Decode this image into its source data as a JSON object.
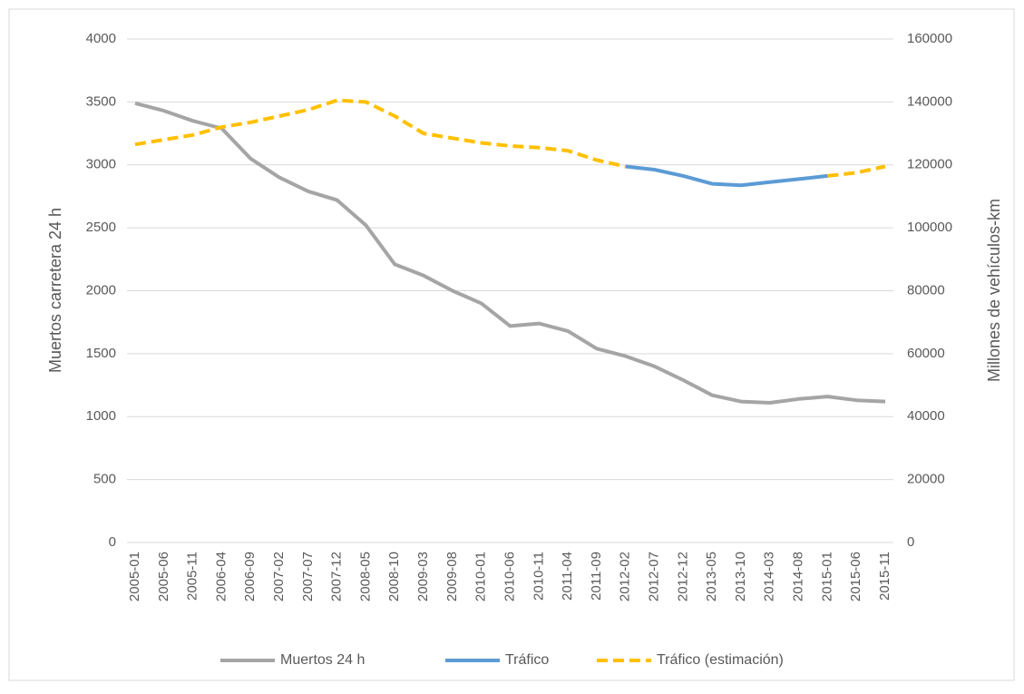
{
  "chart_data": {
    "type": "line",
    "y_label": "Muertos carretera 24 h",
    "y2_label": "Millones de vehículos-km",
    "categories": [
      "2005-01",
      "2005-06",
      "2005-11",
      "2006-04",
      "2006-09",
      "2007-02",
      "2007-07",
      "2007-12",
      "2008-05",
      "2008-10",
      "2009-03",
      "2009-08",
      "2010-01",
      "2010-06",
      "2010-11",
      "2011-04",
      "2011-09",
      "2012-02",
      "2012-07",
      "2012-12",
      "2013-05",
      "2013-10",
      "2014-03",
      "2014-08",
      "2015-01",
      "2015-06",
      "2015-11"
    ],
    "series": [
      {
        "name": "Muertos 24 h",
        "color": "#a5a5a5",
        "dashed": false,
        "values": [
          3490,
          3430,
          3350,
          3290,
          3050,
          2900,
          2790,
          2720,
          2520,
          2210,
          2120,
          2000,
          1900,
          1720,
          1740,
          1680,
          1540,
          1480,
          1400,
          1290,
          1170,
          1120,
          1110,
          1140,
          1160,
          1130,
          1120
        ]
      },
      {
        "name": "Tráfico",
        "color": "#5b9bd5",
        "dashed": false,
        "axis": "y2",
        "values": [
          null,
          null,
          null,
          null,
          null,
          null,
          null,
          null,
          null,
          null,
          null,
          null,
          null,
          null,
          null,
          null,
          null,
          119500,
          118500,
          116500,
          114000,
          113500,
          114500,
          115500,
          116500,
          null,
          null
        ]
      },
      {
        "name": "Tráfico (estimación)",
        "color": "#ffc000",
        "dashed": true,
        "axis": "y2",
        "values": [
          126500,
          128000,
          129500,
          132000,
          133500,
          135500,
          137500,
          140500,
          140000,
          135500,
          130000,
          128500,
          127000,
          126000,
          125500,
          124500,
          121500,
          119500,
          null,
          null,
          null,
          null,
          null,
          null,
          116500,
          117500,
          119500
        ]
      }
    ],
    "ylim": [
      0,
      4000
    ],
    "yticks": [
      0,
      500,
      1000,
      1500,
      2000,
      2500,
      3000,
      3500,
      4000
    ],
    "y2lim": [
      0,
      160000
    ],
    "y2ticks": [
      0,
      20000,
      40000,
      60000,
      80000,
      100000,
      120000,
      140000,
      160000
    ],
    "grid": true,
    "legend": "bottom"
  }
}
